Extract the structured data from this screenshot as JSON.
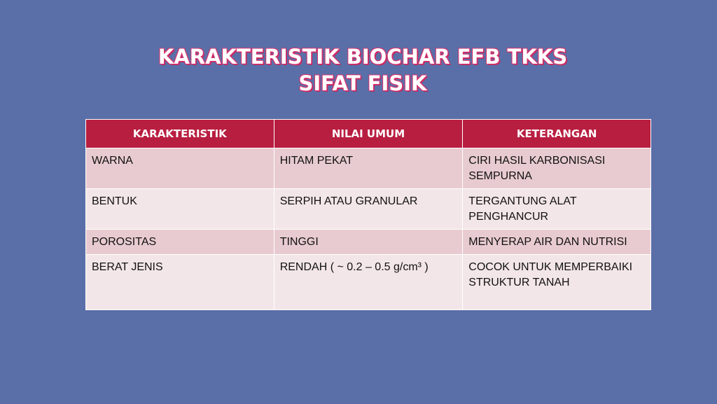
{
  "title": {
    "line1": "KARAKTERISTIK BIOCHAR EFB TKKS",
    "line2": "SIFAT FISIK"
  },
  "colors": {
    "background": "#5a6fa8",
    "header": "#b81e40",
    "row_odd": "#e8cbd0",
    "row_even": "#f3e6e8"
  },
  "table": {
    "headers": [
      "KARAKTERISTIK",
      "NILAI UMUM",
      "KETERANGAN"
    ],
    "rows": [
      [
        "WARNA",
        "HITAM PEKAT",
        "CIRI HASIL KARBONISASI SEMPURNA"
      ],
      [
        "BENTUK",
        "SERPIH ATAU GRANULAR",
        "TERGANTUNG ALAT PENGHANCUR"
      ],
      [
        "POROSITAS",
        "TINGGI",
        "MENYERAP AIR DAN NUTRISI"
      ],
      [
        "BERAT JENIS",
        "RENDAH ( ~ 0.2 – 0.5 g/cm³ )",
        "COCOK UNTUK MEMPERBAIKI STRUKTUR TANAH"
      ]
    ]
  }
}
